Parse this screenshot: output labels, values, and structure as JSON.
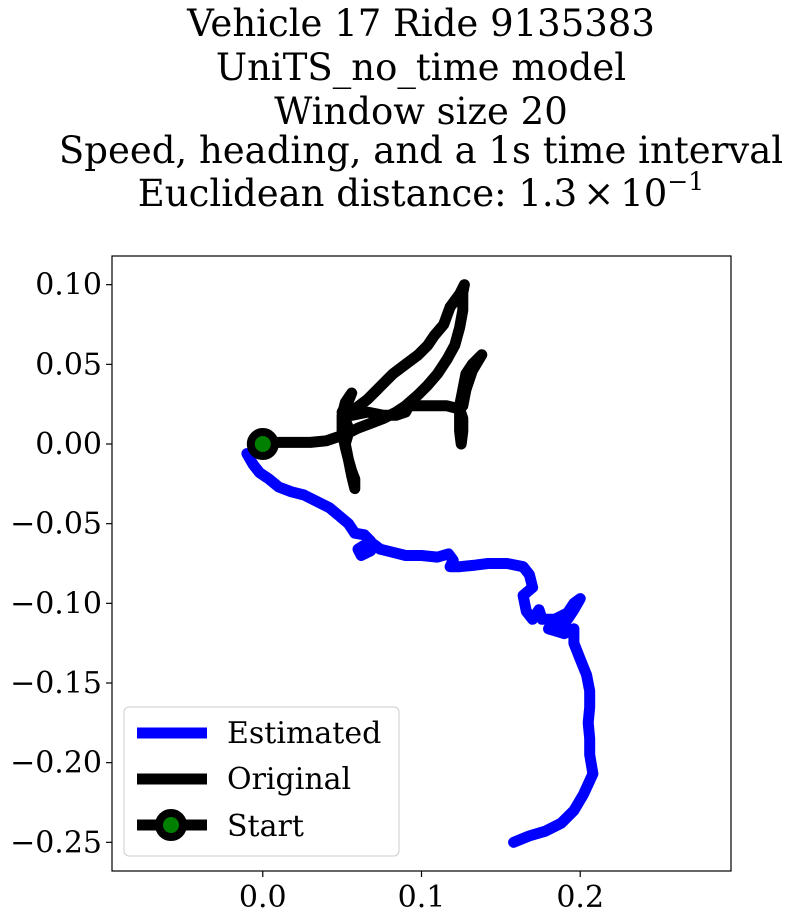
{
  "chart_data": {
    "type": "line",
    "title_lines": [
      "Vehicle 17 Ride 9135383",
      "UniTS_no_time model",
      "Window size 20",
      "Speed, heading, and a 1s time interval",
      "Euclidean distance: "
    ],
    "distance_mantissa": "1.3",
    "distance_times": "×",
    "distance_base": "10",
    "distance_exponent": "−1",
    "xlim": [
      -0.095,
      0.295
    ],
    "ylim": [
      -0.268,
      0.118
    ],
    "xticks": [
      0.0,
      0.1,
      0.2
    ],
    "xtick_labels": [
      "0.0",
      "0.1",
      "0.2"
    ],
    "yticks": [
      0.1,
      0.05,
      0.0,
      -0.05,
      -0.1,
      -0.15,
      -0.2,
      -0.25
    ],
    "ytick_labels": [
      "0.10",
      "0.05",
      "0.00",
      "−0.05",
      "−0.10",
      "−0.15",
      "−0.20",
      "−0.25"
    ],
    "grid": false,
    "legend_position": "lower-left",
    "series": [
      {
        "name": "Estimated",
        "color": "#0000ff",
        "points": [
          [
            -0.01,
            -0.006
          ],
          [
            -0.006,
            -0.013
          ],
          [
            -0.002,
            -0.018
          ],
          [
            0.004,
            -0.022
          ],
          [
            0.01,
            -0.027
          ],
          [
            0.018,
            -0.03
          ],
          [
            0.026,
            -0.032
          ],
          [
            0.034,
            -0.036
          ],
          [
            0.042,
            -0.04
          ],
          [
            0.048,
            -0.045
          ],
          [
            0.054,
            -0.05
          ],
          [
            0.058,
            -0.056
          ],
          [
            0.064,
            -0.057
          ],
          [
            0.068,
            -0.061
          ],
          [
            0.06,
            -0.066
          ],
          [
            0.062,
            -0.07
          ],
          [
            0.068,
            -0.067
          ],
          [
            0.07,
            -0.063
          ],
          [
            0.074,
            -0.066
          ],
          [
            0.082,
            -0.068
          ],
          [
            0.09,
            -0.07
          ],
          [
            0.1,
            -0.07
          ],
          [
            0.11,
            -0.071
          ],
          [
            0.117,
            -0.069
          ],
          [
            0.12,
            -0.073
          ],
          [
            0.118,
            -0.077
          ],
          [
            0.124,
            -0.077
          ],
          [
            0.134,
            -0.076
          ],
          [
            0.142,
            -0.075
          ],
          [
            0.154,
            -0.075
          ],
          [
            0.164,
            -0.077
          ],
          [
            0.168,
            -0.082
          ],
          [
            0.17,
            -0.09
          ],
          [
            0.164,
            -0.095
          ],
          [
            0.166,
            -0.105
          ],
          [
            0.17,
            -0.11
          ],
          [
            0.174,
            -0.104
          ],
          [
            0.176,
            -0.11
          ],
          [
            0.184,
            -0.11
          ],
          [
            0.192,
            -0.106
          ],
          [
            0.196,
            -0.1
          ],
          [
            0.2,
            -0.097
          ],
          [
            0.196,
            -0.104
          ],
          [
            0.192,
            -0.11
          ],
          [
            0.188,
            -0.115
          ],
          [
            0.18,
            -0.116
          ],
          [
            0.19,
            -0.119
          ],
          [
            0.196,
            -0.116
          ],
          [
            0.196,
            -0.125
          ],
          [
            0.2,
            -0.135
          ],
          [
            0.204,
            -0.145
          ],
          [
            0.206,
            -0.155
          ],
          [
            0.206,
            -0.165
          ],
          [
            0.205,
            -0.175
          ],
          [
            0.206,
            -0.185
          ],
          [
            0.206,
            -0.195
          ],
          [
            0.208,
            -0.207
          ],
          [
            0.202,
            -0.22
          ],
          [
            0.196,
            -0.23
          ],
          [
            0.188,
            -0.238
          ],
          [
            0.178,
            -0.243
          ],
          [
            0.168,
            -0.246
          ],
          [
            0.158,
            -0.25
          ]
        ]
      },
      {
        "name": "Original",
        "color": "#000000",
        "points": [
          [
            0.0,
            0.0
          ],
          [
            0.01,
            0.001
          ],
          [
            0.02,
            0.001
          ],
          [
            0.03,
            0.001
          ],
          [
            0.04,
            0.002
          ],
          [
            0.046,
            0.004
          ],
          [
            0.052,
            0.006
          ],
          [
            0.054,
            0.01
          ],
          [
            0.052,
            0.015
          ],
          [
            0.05,
            0.02
          ],
          [
            0.054,
            0.027
          ],
          [
            0.056,
            0.032
          ],
          [
            0.052,
            0.026
          ],
          [
            0.05,
            0.018
          ],
          [
            0.05,
            0.008
          ],
          [
            0.052,
            -0.002
          ],
          [
            0.054,
            -0.01
          ],
          [
            0.056,
            -0.017
          ],
          [
            0.058,
            -0.022
          ],
          [
            0.058,
            -0.028
          ],
          [
            0.056,
            -0.02
          ],
          [
            0.054,
            -0.01
          ],
          [
            0.052,
            0.0
          ],
          [
            0.054,
            0.007
          ],
          [
            0.06,
            0.01
          ],
          [
            0.068,
            0.013
          ],
          [
            0.076,
            0.016
          ],
          [
            0.084,
            0.02
          ],
          [
            0.09,
            0.024
          ],
          [
            0.098,
            0.031
          ],
          [
            0.104,
            0.037
          ],
          [
            0.11,
            0.044
          ],
          [
            0.116,
            0.053
          ],
          [
            0.121,
            0.062
          ],
          [
            0.124,
            0.073
          ],
          [
            0.126,
            0.084
          ],
          [
            0.126,
            0.095
          ],
          [
            0.127,
            0.1
          ],
          [
            0.124,
            0.094
          ],
          [
            0.118,
            0.086
          ],
          [
            0.114,
            0.075
          ],
          [
            0.108,
            0.068
          ],
          [
            0.104,
            0.062
          ],
          [
            0.098,
            0.056
          ],
          [
            0.09,
            0.05
          ],
          [
            0.082,
            0.044
          ],
          [
            0.074,
            0.036
          ],
          [
            0.066,
            0.028
          ],
          [
            0.058,
            0.022
          ],
          [
            0.056,
            0.018
          ],
          [
            0.066,
            0.02
          ],
          [
            0.076,
            0.018
          ],
          [
            0.084,
            0.018
          ],
          [
            0.09,
            0.02
          ],
          [
            0.092,
            0.024
          ],
          [
            0.1,
            0.024
          ],
          [
            0.108,
            0.024
          ],
          [
            0.116,
            0.024
          ],
          [
            0.124,
            0.022
          ],
          [
            0.126,
            0.016
          ],
          [
            0.126,
            0.008
          ],
          [
            0.125,
            0.0
          ],
          [
            0.124,
            0.008
          ],
          [
            0.124,
            0.016
          ],
          [
            0.124,
            0.024
          ],
          [
            0.126,
            0.034
          ],
          [
            0.128,
            0.044
          ],
          [
            0.132,
            0.05
          ],
          [
            0.138,
            0.056
          ],
          [
            0.132,
            0.046
          ],
          [
            0.128,
            0.034
          ],
          [
            0.126,
            0.024
          ]
        ]
      }
    ],
    "start_marker": {
      "name": "Start",
      "point": [
        0.0,
        0.0
      ],
      "edge_color": "#000000",
      "face_color": "#008000"
    }
  }
}
